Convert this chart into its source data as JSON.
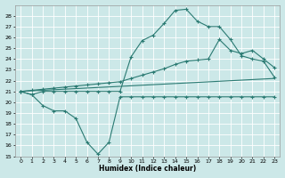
{
  "xlabel": "Humidex (Indice chaleur)",
  "xlim": [
    -0.5,
    23.5
  ],
  "ylim": [
    15,
    29
  ],
  "yticks": [
    15,
    16,
    17,
    18,
    19,
    20,
    21,
    22,
    23,
    24,
    25,
    26,
    27,
    28
  ],
  "xticks": [
    0,
    1,
    2,
    3,
    4,
    5,
    6,
    7,
    8,
    9,
    10,
    11,
    12,
    13,
    14,
    15,
    16,
    17,
    18,
    19,
    20,
    21,
    22,
    23
  ],
  "bg_color": "#cce8e8",
  "grid_color": "#ffffff",
  "line_color": "#2a7a72",
  "line1_x": [
    0,
    1,
    2,
    3,
    4,
    5,
    6,
    7,
    8,
    9,
    10,
    11,
    12,
    13,
    14,
    15,
    16,
    17,
    18,
    19,
    20,
    21,
    22,
    23
  ],
  "line1_y": [
    21.0,
    20.7,
    19.7,
    19.2,
    19.2,
    18.5,
    16.3,
    15.2,
    16.3,
    20.5,
    20.5,
    20.5,
    20.5,
    20.5,
    20.5,
    20.5,
    20.5,
    20.5,
    20.5,
    20.5,
    20.5,
    20.5,
    20.5,
    20.5
  ],
  "line2_x": [
    0,
    23
  ],
  "line2_y": [
    21.0,
    22.2
  ],
  "line3_x": [
    0,
    1,
    2,
    3,
    4,
    5,
    6,
    7,
    8,
    9,
    10,
    11,
    12,
    13,
    14,
    15,
    16,
    17,
    18,
    19,
    20,
    21,
    22,
    23
  ],
  "line3_y": [
    21.0,
    21.1,
    21.2,
    21.3,
    21.4,
    21.5,
    21.6,
    21.7,
    21.8,
    21.9,
    22.2,
    22.5,
    22.8,
    23.1,
    23.5,
    23.8,
    23.9,
    24.0,
    25.8,
    24.8,
    24.5,
    24.8,
    24.0,
    23.2
  ],
  "line4_x": [
    0,
    1,
    2,
    3,
    4,
    5,
    6,
    7,
    8,
    9,
    10,
    11,
    12,
    13,
    14,
    15,
    16,
    17,
    18,
    19,
    20,
    21,
    22,
    23
  ],
  "line4_y": [
    21.0,
    20.7,
    21.0,
    21.0,
    21.0,
    21.0,
    21.0,
    21.0,
    21.0,
    21.0,
    24.2,
    25.7,
    26.2,
    27.3,
    28.5,
    28.6,
    27.5,
    27.0,
    27.0,
    25.8,
    24.3,
    24.0,
    23.8,
    22.3
  ]
}
